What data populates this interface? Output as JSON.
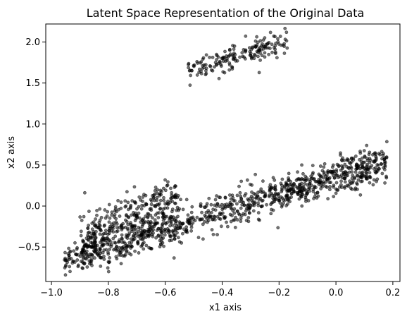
{
  "chart_data": {
    "type": "scatter",
    "title": "Latent Space Representation of the Original Data",
    "xlabel": "x1 axis",
    "ylabel": "x2 axis",
    "xlim": [
      -1.02,
      0.225
    ],
    "ylim": [
      -0.92,
      2.22
    ],
    "grid": false,
    "legend": "none",
    "color": "#000000",
    "xticks": [
      -1.0,
      -0.8,
      -0.6,
      -0.4,
      -0.2,
      0.0,
      0.2
    ],
    "xtick_labels": [
      "−1.0",
      "−0.8",
      "−0.6",
      "−0.4",
      "−0.2",
      "0.0",
      "0.2"
    ],
    "yticks": [
      -0.5,
      0.0,
      0.5,
      1.0,
      1.5,
      2.0
    ],
    "ytick_labels": [
      "−0.5",
      "0.0",
      "0.5",
      "1.0",
      "1.5",
      "2.0"
    ],
    "clusters": [
      {
        "x_range": [
          -0.52,
          -0.17
        ],
        "center": [
          -0.35,
          1.83
        ],
        "slope": 1.0,
        "spread": 0.07,
        "count": 180
      },
      {
        "x_range": [
          -0.96,
          0.18
        ],
        "center": [
          -0.39,
          -0.05
        ],
        "slope": 1.1,
        "spread": 0.1,
        "count": 900
      },
      {
        "x_range": [
          -0.9,
          -0.55
        ],
        "center": [
          -0.74,
          -0.18
        ],
        "slope": 1.45,
        "spread": 0.16,
        "count": 330
      },
      {
        "x_range": [
          -0.22,
          0.18
        ],
        "center": [
          -0.02,
          0.28
        ],
        "slope": 0.9,
        "spread": 0.09,
        "count": 140
      }
    ]
  }
}
